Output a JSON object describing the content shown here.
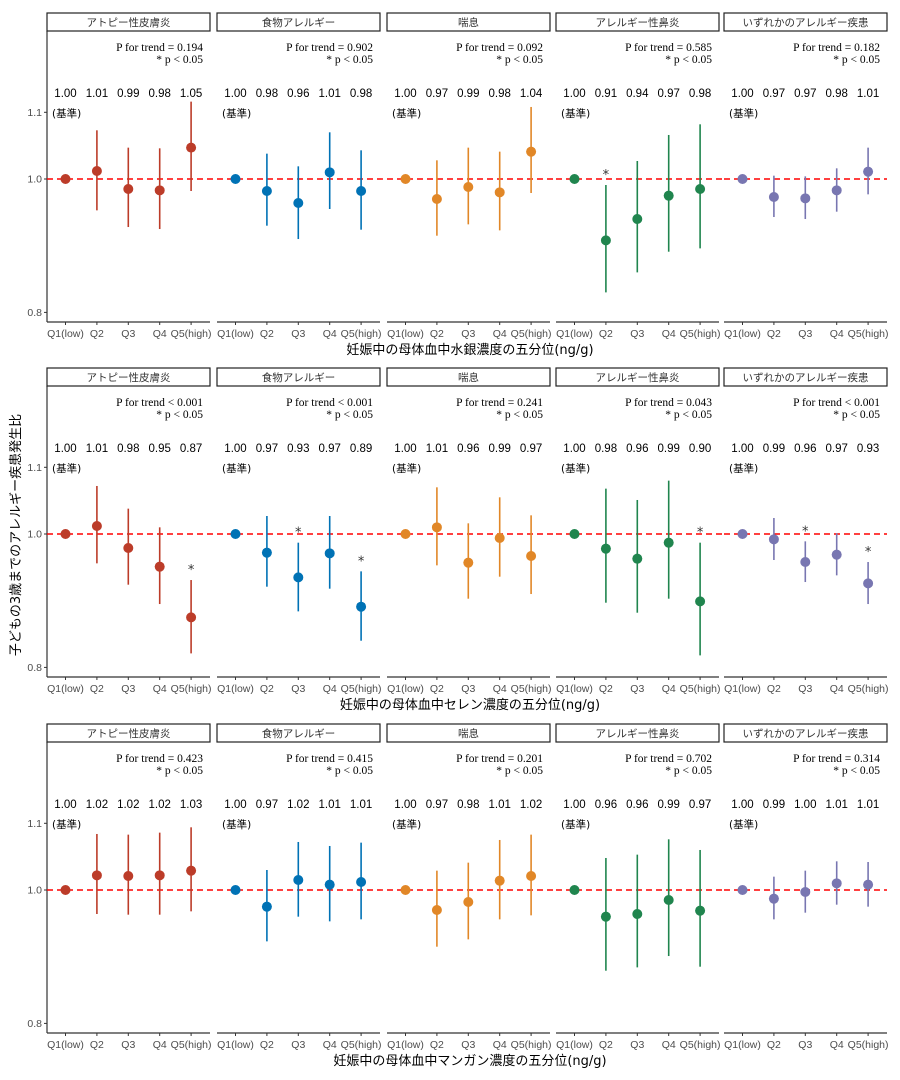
{
  "chart_data": {
    "type": "scatter",
    "subtype": "forest-plot (point estimate with 95% CI)",
    "ylabel": "子どもの3歳までのアレルギー疾患発生比",
    "y_scale": "linear",
    "ylim": [
      0.78,
      1.22
    ],
    "yticks": [
      0.8,
      1.0,
      1.1
    ],
    "ytick_labels": [
      "0.8",
      "1.0",
      "1.1"
    ],
    "reference_line": {
      "y": 1.0,
      "style": "dashed",
      "color": "#FF0000"
    },
    "categories": [
      "Q1(low)",
      "Q2",
      "Q3",
      "Q4",
      "Q5(high)"
    ],
    "reference_label": "(基準)",
    "significance_note": "* p < 0.05",
    "facets": [
      {
        "name": "アトピー性皮膚炎",
        "color": "#BC3C29"
      },
      {
        "name": "食物アレルギー",
        "color": "#0072B5"
      },
      {
        "name": "喘息",
        "color": "#E18727"
      },
      {
        "name": "アレルギー性鼻炎",
        "color": "#20854E"
      },
      {
        "name": "いずれかのアレルギー疾患",
        "color": "#7876B1"
      }
    ],
    "rows": [
      {
        "xlabel": "妊娠中の母体血中水銀濃度の五分位(ng/g)",
        "panels": [
          {
            "p_trend": "P for trend = 0.194",
            "labels": [
              "1.00",
              "1.01",
              "0.99",
              "0.98",
              "1.05"
            ],
            "est": [
              1.0,
              1.012,
              0.985,
              0.983,
              1.047
            ],
            "lo": [
              1.0,
              0.953,
              0.928,
              0.925,
              0.982
            ],
            "hi": [
              1.0,
              1.073,
              1.047,
              1.046,
              1.116
            ],
            "sig": [
              false,
              false,
              false,
              false,
              false
            ]
          },
          {
            "p_trend": "P for trend = 0.902",
            "labels": [
              "1.00",
              "0.98",
              "0.96",
              "1.01",
              "0.98"
            ],
            "est": [
              1.0,
              0.982,
              0.964,
              1.01,
              0.982
            ],
            "lo": [
              1.0,
              0.93,
              0.91,
              0.955,
              0.924
            ],
            "hi": [
              1.0,
              1.038,
              1.019,
              1.07,
              1.043
            ],
            "sig": [
              false,
              false,
              false,
              false,
              false
            ]
          },
          {
            "p_trend": "P for trend = 0.092",
            "labels": [
              "1.00",
              "0.97",
              "0.99",
              "0.98",
              "1.04"
            ],
            "est": [
              1.0,
              0.97,
              0.988,
              0.98,
              1.041
            ],
            "lo": [
              1.0,
              0.915,
              0.932,
              0.923,
              0.979
            ],
            "hi": [
              1.0,
              1.028,
              1.047,
              1.041,
              1.108
            ],
            "sig": [
              false,
              false,
              false,
              false,
              false
            ]
          },
          {
            "p_trend": "P for trend = 0.585",
            "labels": [
              "1.00",
              "0.91",
              "0.94",
              "0.97",
              "0.98"
            ],
            "est": [
              1.0,
              0.908,
              0.94,
              0.975,
              0.985
            ],
            "lo": [
              1.0,
              0.83,
              0.86,
              0.891,
              0.896
            ],
            "hi": [
              1.0,
              0.991,
              1.027,
              1.066,
              1.082
            ],
            "sig": [
              false,
              true,
              false,
              false,
              false
            ]
          },
          {
            "p_trend": "P for trend = 0.182",
            "labels": [
              "1.00",
              "0.97",
              "0.97",
              "0.98",
              "1.01"
            ],
            "est": [
              1.0,
              0.973,
              0.971,
              0.983,
              1.011
            ],
            "lo": [
              1.0,
              0.943,
              0.94,
              0.951,
              0.977
            ],
            "hi": [
              1.0,
              1.005,
              1.004,
              1.016,
              1.047
            ],
            "sig": [
              false,
              false,
              false,
              false,
              false
            ]
          }
        ]
      },
      {
        "xlabel": "妊娠中の母体血中セレン濃度の五分位(ng/g)",
        "panels": [
          {
            "p_trend": "P for trend < 0.001",
            "labels": [
              "1.00",
              "1.01",
              "0.98",
              "0.95",
              "0.87"
            ],
            "est": [
              1.0,
              1.012,
              0.979,
              0.951,
              0.875
            ],
            "lo": [
              1.0,
              0.956,
              0.924,
              0.895,
              0.821
            ],
            "hi": [
              1.0,
              1.072,
              1.038,
              1.01,
              0.931
            ],
            "sig": [
              false,
              false,
              false,
              false,
              true
            ]
          },
          {
            "p_trend": "P for trend < 0.001",
            "labels": [
              "1.00",
              "0.97",
              "0.93",
              "0.97",
              "0.89"
            ],
            "est": [
              1.0,
              0.972,
              0.935,
              0.971,
              0.891
            ],
            "lo": [
              1.0,
              0.921,
              0.884,
              0.918,
              0.84
            ],
            "hi": [
              1.0,
              1.027,
              0.987,
              1.027,
              0.944
            ],
            "sig": [
              false,
              false,
              true,
              false,
              true
            ]
          },
          {
            "p_trend": "P for trend = 0.241",
            "labels": [
              "1.00",
              "1.01",
              "0.96",
              "0.99",
              "0.97"
            ],
            "est": [
              1.0,
              1.01,
              0.957,
              0.994,
              0.967
            ],
            "lo": [
              1.0,
              0.953,
              0.903,
              0.936,
              0.91
            ],
            "hi": [
              1.0,
              1.07,
              1.016,
              1.055,
              1.028
            ],
            "sig": [
              false,
              false,
              false,
              false,
              false
            ]
          },
          {
            "p_trend": "P for trend = 0.043",
            "labels": [
              "1.00",
              "0.98",
              "0.96",
              "0.99",
              "0.90"
            ],
            "est": [
              1.0,
              0.978,
              0.963,
              0.987,
              0.899
            ],
            "lo": [
              1.0,
              0.897,
              0.882,
              0.903,
              0.818
            ],
            "hi": [
              1.0,
              1.068,
              1.051,
              1.08,
              0.987
            ],
            "sig": [
              false,
              false,
              false,
              false,
              true
            ]
          },
          {
            "p_trend": "P for trend < 0.001",
            "labels": [
              "1.00",
              "0.99",
              "0.96",
              "0.97",
              "0.93"
            ],
            "est": [
              1.0,
              0.992,
              0.958,
              0.969,
              0.926
            ],
            "lo": [
              1.0,
              0.961,
              0.928,
              0.938,
              0.895
            ],
            "hi": [
              1.0,
              1.024,
              0.989,
              1.001,
              0.958
            ],
            "sig": [
              false,
              false,
              true,
              false,
              true
            ]
          }
        ]
      },
      {
        "xlabel": "妊娠中の母体血中マンガン濃度の五分位(ng/g)",
        "panels": [
          {
            "p_trend": "P for trend = 0.423",
            "labels": [
              "1.00",
              "1.02",
              "1.02",
              "1.02",
              "1.03"
            ],
            "est": [
              1.0,
              1.022,
              1.021,
              1.022,
              1.029
            ],
            "lo": [
              1.0,
              0.964,
              0.963,
              0.963,
              0.968
            ],
            "hi": [
              1.0,
              1.084,
              1.083,
              1.086,
              1.094
            ],
            "sig": [
              false,
              false,
              false,
              false,
              false
            ]
          },
          {
            "p_trend": "P for trend = 0.415",
            "labels": [
              "1.00",
              "0.97",
              "1.02",
              "1.01",
              "1.01"
            ],
            "est": [
              1.0,
              0.975,
              1.015,
              1.008,
              1.012
            ],
            "lo": [
              1.0,
              0.923,
              0.96,
              0.953,
              0.956
            ],
            "hi": [
              1.0,
              1.03,
              1.072,
              1.066,
              1.071
            ],
            "sig": [
              false,
              false,
              false,
              false,
              false
            ]
          },
          {
            "p_trend": "P for trend = 0.201",
            "labels": [
              "1.00",
              "0.97",
              "0.98",
              "1.01",
              "1.02"
            ],
            "est": [
              1.0,
              0.97,
              0.982,
              1.014,
              1.021
            ],
            "lo": [
              1.0,
              0.915,
              0.926,
              0.956,
              0.962
            ],
            "hi": [
              1.0,
              1.029,
              1.041,
              1.075,
              1.083
            ],
            "sig": [
              false,
              false,
              false,
              false,
              false
            ]
          },
          {
            "p_trend": "P for trend = 0.702",
            "labels": [
              "1.00",
              "0.96",
              "0.96",
              "0.99",
              "0.97"
            ],
            "est": [
              1.0,
              0.96,
              0.964,
              0.985,
              0.969
            ],
            "lo": [
              1.0,
              0.879,
              0.884,
              0.901,
              0.885
            ],
            "hi": [
              1.0,
              1.048,
              1.053,
              1.076,
              1.06
            ],
            "sig": [
              false,
              false,
              false,
              false,
              false
            ]
          },
          {
            "p_trend": "P for trend = 0.314",
            "labels": [
              "1.00",
              "0.99",
              "1.00",
              "1.01",
              "1.01"
            ],
            "est": [
              1.0,
              0.987,
              0.997,
              1.01,
              1.008
            ],
            "lo": [
              1.0,
              0.956,
              0.966,
              0.978,
              0.975
            ],
            "hi": [
              1.0,
              1.02,
              1.029,
              1.043,
              1.042
            ],
            "sig": [
              false,
              false,
              false,
              false,
              false
            ]
          }
        ]
      }
    ]
  }
}
